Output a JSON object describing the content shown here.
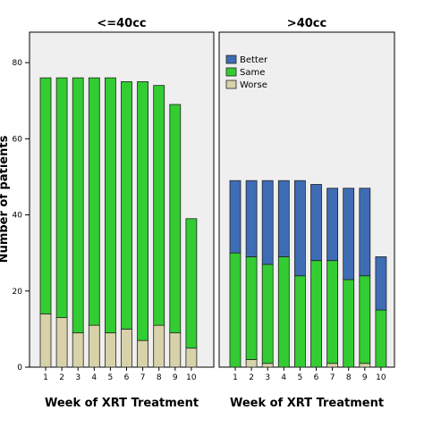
{
  "chart_data": {
    "type": "bar",
    "stacked": true,
    "ylabel": "Number of patients",
    "yticks": [
      0,
      20,
      40,
      60,
      80
    ],
    "ylim": [
      0,
      88
    ],
    "colors": {
      "Worse": "#d8d2aa",
      "Same": "#33cc33",
      "Better": "#3f6db5",
      "panel_bg": "#efefef"
    },
    "legend": {
      "placement": "top-left of right panel",
      "entries": [
        "Better",
        "Same",
        "Worse"
      ]
    },
    "panels": [
      {
        "title": "<=40cc",
        "xlabel": "Week of XRT Treatment",
        "categories": [
          "1",
          "2",
          "3",
          "4",
          "5",
          "6",
          "7",
          "8",
          "9",
          "10"
        ],
        "series": [
          {
            "name": "Worse",
            "values": [
              14,
              13,
              9,
              11,
              9,
              10,
              7,
              11,
              9,
              5
            ]
          },
          {
            "name": "Same",
            "values": [
              62,
              63,
              67,
              65,
              67,
              65,
              68,
              63,
              60,
              34
            ]
          },
          {
            "name": "Better",
            "values": [
              0,
              0,
              0,
              0,
              0,
              0,
              0,
              0,
              0,
              0
            ]
          }
        ]
      },
      {
        "title": ">40cc",
        "xlabel": "Week of XRT Treatment",
        "categories": [
          "1",
          "2",
          "3",
          "4",
          "5",
          "6",
          "7",
          "8",
          "9",
          "10"
        ],
        "series": [
          {
            "name": "Worse",
            "values": [
              0,
              2,
              1,
              0,
              0,
              0,
              1,
              0,
              1,
              0
            ]
          },
          {
            "name": "Same",
            "values": [
              30,
              27,
              26,
              29,
              24,
              28,
              27,
              23,
              23,
              15
            ]
          },
          {
            "name": "Better",
            "values": [
              19,
              20,
              22,
              20,
              25,
              20,
              19,
              24,
              23,
              14
            ]
          }
        ]
      }
    ]
  }
}
